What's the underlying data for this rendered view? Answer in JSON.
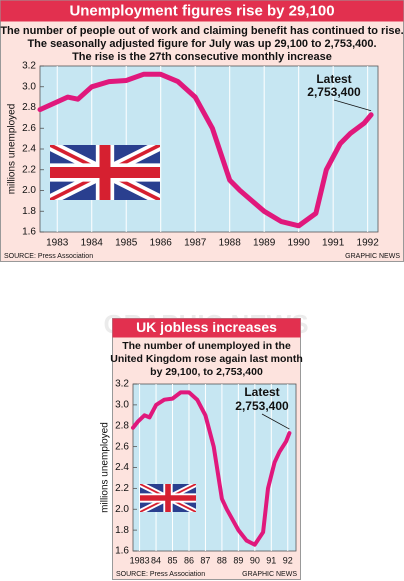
{
  "chart_data": [
    {
      "type": "line",
      "title": "Unemployment figures rise by 29,100",
      "subtitle": [
        "The number of people out of work and claiming benefit has continued to rise.",
        "The seasonally adjusted figure for July was up 29,100 to 2,753,400.",
        "The rise is the 27th consecutive monthly increase"
      ],
      "y_label": "millions unemployed",
      "x": [
        1982.5,
        1982.9,
        1983.3,
        1983.6,
        1984.0,
        1984.5,
        1985.0,
        1985.5,
        1986.0,
        1986.5,
        1987.0,
        1987.5,
        1988.0,
        1988.3,
        1989.0,
        1989.5,
        1990.0,
        1990.5,
        1990.8,
        1991.2,
        1991.5,
        1991.9,
        1992.1
      ],
      "values": [
        2.78,
        2.84,
        2.9,
        2.88,
        3.0,
        3.05,
        3.06,
        3.12,
        3.12,
        3.05,
        2.9,
        2.6,
        2.1,
        2.0,
        1.8,
        1.7,
        1.66,
        1.78,
        2.2,
        2.45,
        2.55,
        2.65,
        2.73
      ],
      "color": "#e0187c",
      "xlim": [
        1982.5,
        1992.3
      ],
      "xticks": [
        1983,
        1984,
        1985,
        1986,
        1987,
        1988,
        1989,
        1990,
        1991,
        1992
      ],
      "ylim": [
        1.6,
        3.2
      ],
      "yticks": [
        1.6,
        1.8,
        {
          "value": 2,
          "label": "2.0"
        },
        2.2,
        2.4,
        2.6,
        2.8,
        {
          "value": 3,
          "label": "3.0"
        },
        3.2
      ],
      "grid": true,
      "annotation": [
        "Latest",
        "2,753,400"
      ],
      "source": "SOURCE: Press Association",
      "credit": "GRAPHIC NEWS"
    },
    {
      "type": "line",
      "title": "UK jobless increases",
      "subtitle": [
        "The number of unemployed in the",
        "United Kingdom rose again last month",
        "by 29,100, to 2,753,400"
      ],
      "y_label": "millions unemployed",
      "x": [
        1982.6,
        1982.9,
        1983.3,
        1983.6,
        1984.0,
        1984.5,
        1985.0,
        1985.5,
        1986.0,
        1986.5,
        1987.0,
        1987.5,
        1988.0,
        1988.3,
        1989.0,
        1989.5,
        1990.0,
        1990.5,
        1990.8,
        1991.2,
        1991.5,
        1991.9,
        1992.1
      ],
      "values": [
        2.78,
        2.84,
        2.9,
        2.88,
        3.0,
        3.05,
        3.06,
        3.12,
        3.12,
        3.05,
        2.9,
        2.6,
        2.1,
        2.0,
        1.8,
        1.7,
        1.66,
        1.78,
        2.2,
        2.45,
        2.55,
        2.65,
        2.73
      ],
      "color": "#e0187c",
      "xlim": [
        1982.6,
        1992.5
      ],
      "xticks": [
        1983,
        {
          "value": 1984,
          "label": "84"
        },
        {
          "value": 1985,
          "label": "85"
        },
        {
          "value": 1986,
          "label": "86"
        },
        {
          "value": 1987,
          "label": "87"
        },
        {
          "value": 1988,
          "label": "88"
        },
        {
          "value": 1989,
          "label": "89"
        },
        {
          "value": 1990,
          "label": "90"
        },
        {
          "value": 1991,
          "label": "91"
        },
        {
          "value": 1992,
          "label": "92"
        }
      ],
      "ylim": [
        1.6,
        3.2
      ],
      "yticks": [
        1.6,
        1.8,
        {
          "value": 2,
          "label": "2.0"
        },
        2.2,
        2.4,
        2.6,
        2.8,
        {
          "value": 3,
          "label": "3.0"
        },
        3.2
      ],
      "grid": true,
      "annotation": [
        "Latest",
        "2,753,400"
      ],
      "source": "SOURCE: Press Association",
      "credit": "GRAPHIC NEWS"
    }
  ],
  "watermark": "GRAPHIC NEWS"
}
